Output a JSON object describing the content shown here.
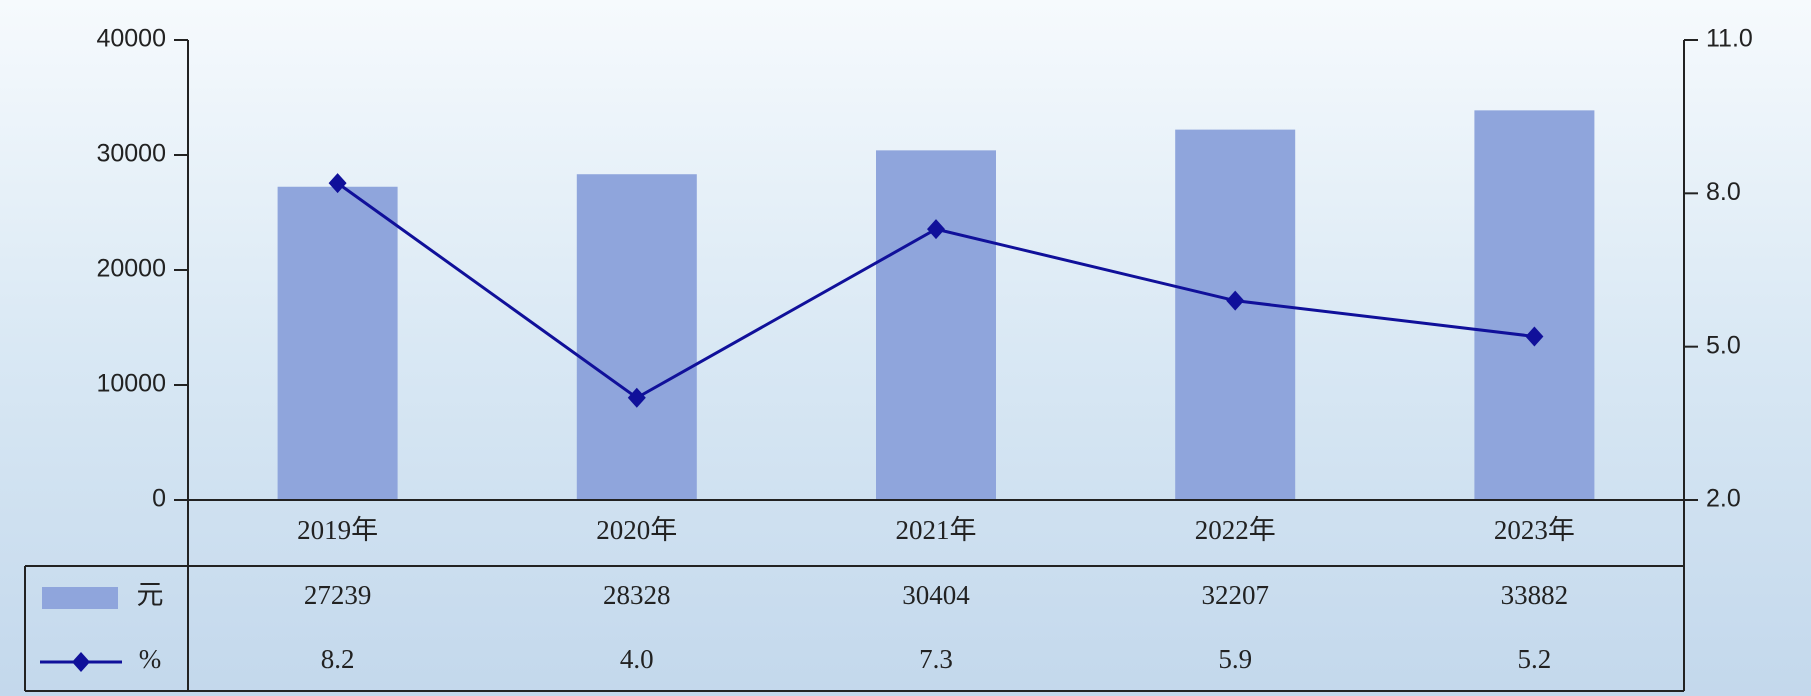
{
  "chart_data": {
    "type": "bar-line",
    "categories": [
      "2019年",
      "2020年",
      "2021年",
      "2022年",
      "2023年"
    ],
    "series": [
      {
        "name": "元",
        "type": "bar",
        "color": "#8fa5dc",
        "values": [
          27239,
          28328,
          30404,
          32207,
          33882
        ]
      },
      {
        "name": "%",
        "type": "line",
        "axis": "y2",
        "color": "#10109a",
        "values": [
          8.2,
          4.0,
          7.3,
          5.9,
          5.2
        ],
        "value_labels": [
          "8.2",
          "4.0",
          "7.3",
          "5.9",
          "5.2"
        ]
      }
    ],
    "ylim": [
      0,
      40000
    ],
    "yticks": [
      0,
      10000,
      20000,
      30000,
      40000
    ],
    "y2lim": [
      2.0,
      11.0
    ],
    "y2ticks": [
      {
        "value": 2.0,
        "label": "2.0"
      },
      {
        "value": 5.0,
        "label": "5.0"
      },
      {
        "value": 8.0,
        "label": "8.0"
      },
      {
        "value": 11.0,
        "label": "11.0"
      }
    ]
  }
}
